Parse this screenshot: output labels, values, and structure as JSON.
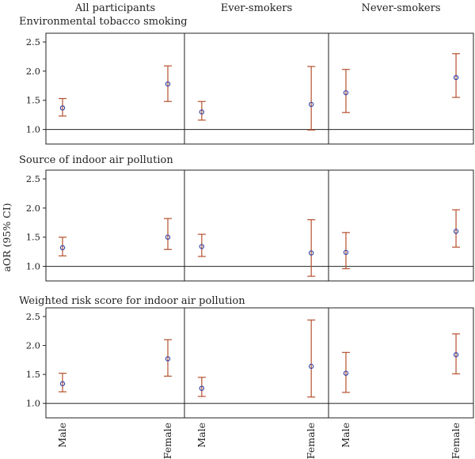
{
  "chart_data": {
    "type": "scatter",
    "ylabel": "aOR (95% CI)",
    "ylim": [
      0.75,
      2.65
    ],
    "yticks": [
      "1.0",
      "1.5",
      "2.0",
      "2.5"
    ],
    "reference_line": 1.0,
    "columns": [
      "All participants",
      "Ever-smokers",
      "Never-smokers"
    ],
    "categories": [
      "Male",
      "Female"
    ],
    "colors": {
      "interval": "#b5502e",
      "point": "#3a48a8"
    },
    "rows": [
      {
        "title": "Environmental tobacco smoking",
        "cells": [
          [
            {
              "estimate": 1.37,
              "lower": 1.23,
              "upper": 1.53
            },
            {
              "estimate": 1.78,
              "lower": 1.48,
              "upper": 2.09
            }
          ],
          [
            {
              "estimate": 1.3,
              "lower": 1.16,
              "upper": 1.48
            },
            {
              "estimate": 1.43,
              "lower": 0.99,
              "upper": 2.08
            }
          ],
          [
            {
              "estimate": 1.63,
              "lower": 1.29,
              "upper": 2.03
            },
            {
              "estimate": 1.89,
              "lower": 1.55,
              "upper": 2.3
            }
          ]
        ]
      },
      {
        "title": "Source of indoor air pollution",
        "cells": [
          [
            {
              "estimate": 1.32,
              "lower": 1.18,
              "upper": 1.5
            },
            {
              "estimate": 1.5,
              "lower": 1.29,
              "upper": 1.82
            }
          ],
          [
            {
              "estimate": 1.34,
              "lower": 1.17,
              "upper": 1.55
            },
            {
              "estimate": 1.23,
              "lower": 0.83,
              "upper": 1.8
            }
          ],
          [
            {
              "estimate": 1.24,
              "lower": 0.96,
              "upper": 1.58
            },
            {
              "estimate": 1.6,
              "lower": 1.33,
              "upper": 1.97
            }
          ]
        ]
      },
      {
        "title": "Weighted risk score for indoor air pollution",
        "cells": [
          [
            {
              "estimate": 1.34,
              "lower": 1.2,
              "upper": 1.52
            },
            {
              "estimate": 1.77,
              "lower": 1.47,
              "upper": 2.1
            }
          ],
          [
            {
              "estimate": 1.26,
              "lower": 1.12,
              "upper": 1.45
            },
            {
              "estimate": 1.64,
              "lower": 1.11,
              "upper": 2.44
            }
          ],
          [
            {
              "estimate": 1.52,
              "lower": 1.19,
              "upper": 1.88
            },
            {
              "estimate": 1.84,
              "lower": 1.51,
              "upper": 2.2
            }
          ]
        ]
      }
    ]
  }
}
